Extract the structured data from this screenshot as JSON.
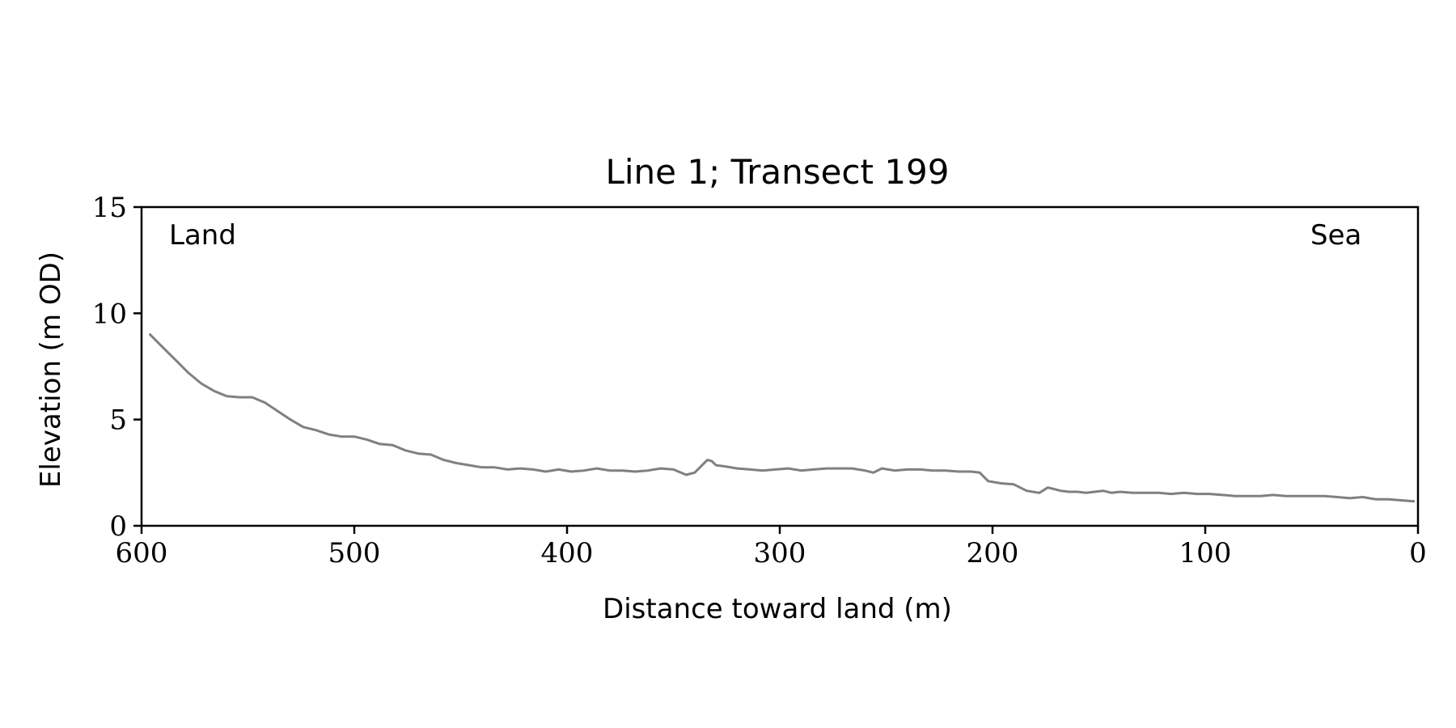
{
  "chart_data": {
    "type": "line",
    "title": "Line 1; Transect 199",
    "xlabel": "Distance toward land (m)",
    "ylabel": "Elevation (m OD)",
    "xlim": [
      600,
      0
    ],
    "ylim": [
      0,
      15
    ],
    "xticks": [
      600,
      500,
      400,
      300,
      200,
      100,
      0
    ],
    "yticks": [
      0,
      5,
      10,
      15
    ],
    "x_reversed": true,
    "grid": false,
    "line_color": "#808080",
    "annotations": [
      {
        "text": "Land",
        "position": "top-left"
      },
      {
        "text": "Sea",
        "position": "top-right"
      }
    ],
    "series": [
      {
        "x": [
          596,
          590,
          584,
          578,
          572,
          566,
          560,
          554,
          548,
          542,
          536,
          530,
          524,
          518,
          512,
          506,
          500,
          494,
          488,
          482,
          476,
          470,
          464,
          458,
          452,
          446,
          440,
          434,
          428,
          422,
          416,
          410,
          404,
          398,
          392,
          386,
          380,
          374,
          368,
          362,
          356,
          350,
          344,
          340,
          336,
          334,
          332,
          330,
          326,
          320,
          314,
          308,
          302,
          296,
          290,
          284,
          278,
          272,
          266,
          260,
          256,
          252,
          246,
          240,
          234,
          228,
          222,
          216,
          210,
          206,
          202,
          196,
          190,
          184,
          178,
          174,
          172,
          168,
          164,
          160,
          156,
          152,
          148,
          144,
          140,
          134,
          128,
          122,
          116,
          110,
          104,
          98,
          92,
          86,
          80,
          74,
          68,
          62,
          56,
          50,
          44,
          38,
          32,
          26,
          20,
          14,
          8,
          2
        ],
        "y": [
          9.0,
          8.4,
          7.8,
          7.2,
          6.7,
          6.35,
          6.1,
          6.05,
          6.05,
          5.8,
          5.4,
          5.0,
          4.65,
          4.5,
          4.3,
          4.2,
          4.2,
          4.05,
          3.85,
          3.8,
          3.55,
          3.4,
          3.35,
          3.1,
          2.95,
          2.85,
          2.75,
          2.75,
          2.65,
          2.7,
          2.65,
          2.55,
          2.65,
          2.55,
          2.6,
          2.7,
          2.6,
          2.6,
          2.55,
          2.6,
          2.7,
          2.65,
          2.4,
          2.5,
          2.9,
          3.1,
          3.05,
          2.85,
          2.8,
          2.7,
          2.65,
          2.6,
          2.65,
          2.7,
          2.6,
          2.65,
          2.7,
          2.7,
          2.7,
          2.6,
          2.5,
          2.7,
          2.6,
          2.65,
          2.65,
          2.6,
          2.6,
          2.55,
          2.55,
          2.5,
          2.1,
          2.0,
          1.95,
          1.65,
          1.55,
          1.8,
          1.75,
          1.65,
          1.6,
          1.6,
          1.55,
          1.6,
          1.65,
          1.55,
          1.6,
          1.55,
          1.55,
          1.55,
          1.5,
          1.55,
          1.5,
          1.5,
          1.45,
          1.4,
          1.4,
          1.4,
          1.45,
          1.4,
          1.4,
          1.4,
          1.4,
          1.35,
          1.3,
          1.35,
          1.25,
          1.25,
          1.2,
          1.15
        ]
      }
    ]
  }
}
